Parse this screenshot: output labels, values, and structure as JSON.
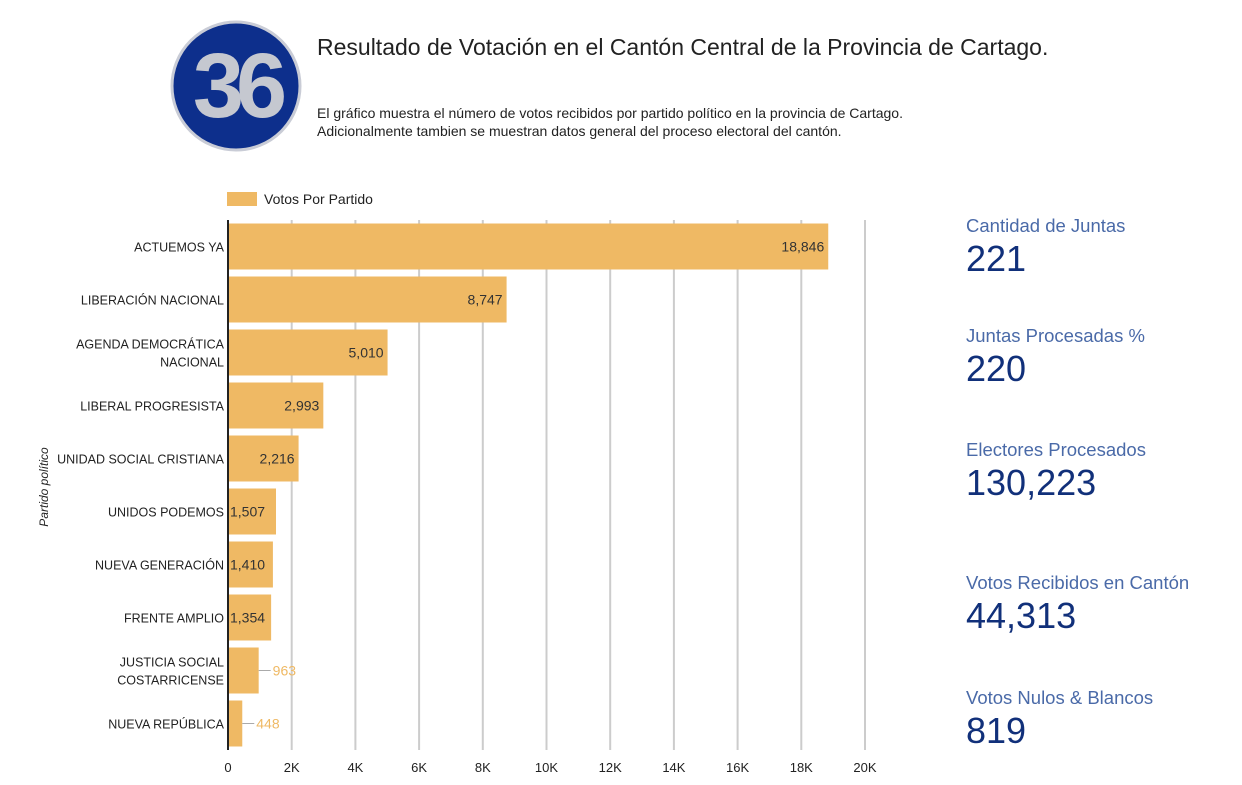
{
  "logo": {
    "text": "36",
    "name": "36-logo"
  },
  "title": "Resultado de Votación en el Cantón Central de la Provincia de Cartago.",
  "subtitle": [
    "El gráfico muestra el número de votos recibidos por partido político en la provincia de Cartago.",
    "Adicionalmente tambien se muestran datos general del proceso electoral del cantón."
  ],
  "colors": {
    "bar": "#efb964",
    "grid": "#cccccc",
    "kpi_label": "#4a6aa8",
    "kpi_value": "#11307a",
    "logo_bg": "#0d2f8c"
  },
  "chart_data": {
    "type": "bar",
    "orientation": "horizontal",
    "legend": "Votos Por Partido",
    "legend_position": "top-left",
    "ylabel": "Partido político",
    "xlabel": "",
    "xlim": [
      0,
      20000
    ],
    "xticks": [
      "0",
      "2K",
      "4K",
      "6K",
      "8K",
      "10K",
      "12K",
      "14K",
      "16K",
      "18K",
      "20K"
    ],
    "grid": true,
    "categories": [
      [
        "ACTUEMOS YA"
      ],
      [
        "LIBERACIÓN NACIONAL"
      ],
      [
        "AGENDA DEMOCRÁTICA",
        "NACIONAL"
      ],
      [
        "LIBERAL PROGRESISTA"
      ],
      [
        "UNIDAD SOCIAL CRISTIANA"
      ],
      [
        "UNIDOS PODEMOS"
      ],
      [
        "NUEVA GENERACIÓN"
      ],
      [
        "FRENTE AMPLIO"
      ],
      [
        "JUSTICIA SOCIAL",
        "COSTARRICENSE"
      ],
      [
        "NUEVA REPÚBLICA"
      ]
    ],
    "values": [
      18846,
      8747,
      5010,
      2993,
      2216,
      1507,
      1410,
      1354,
      963,
      448
    ],
    "value_labels": [
      "18,846",
      "8,747",
      "5,010",
      "2,993",
      "2,216",
      "1,507",
      "1,410",
      "1,354",
      "963",
      "448"
    ]
  },
  "kpis": [
    {
      "label": "Cantidad de Juntas",
      "value": "221"
    },
    {
      "label": "Juntas Procesadas %",
      "value": "220"
    },
    {
      "label": "Electores Procesados",
      "value": "130,223"
    },
    {
      "label": "Votos Recibidos en Cantón",
      "value": "44,313"
    },
    {
      "label": "Votos Nulos & Blancos",
      "value": "819"
    }
  ]
}
